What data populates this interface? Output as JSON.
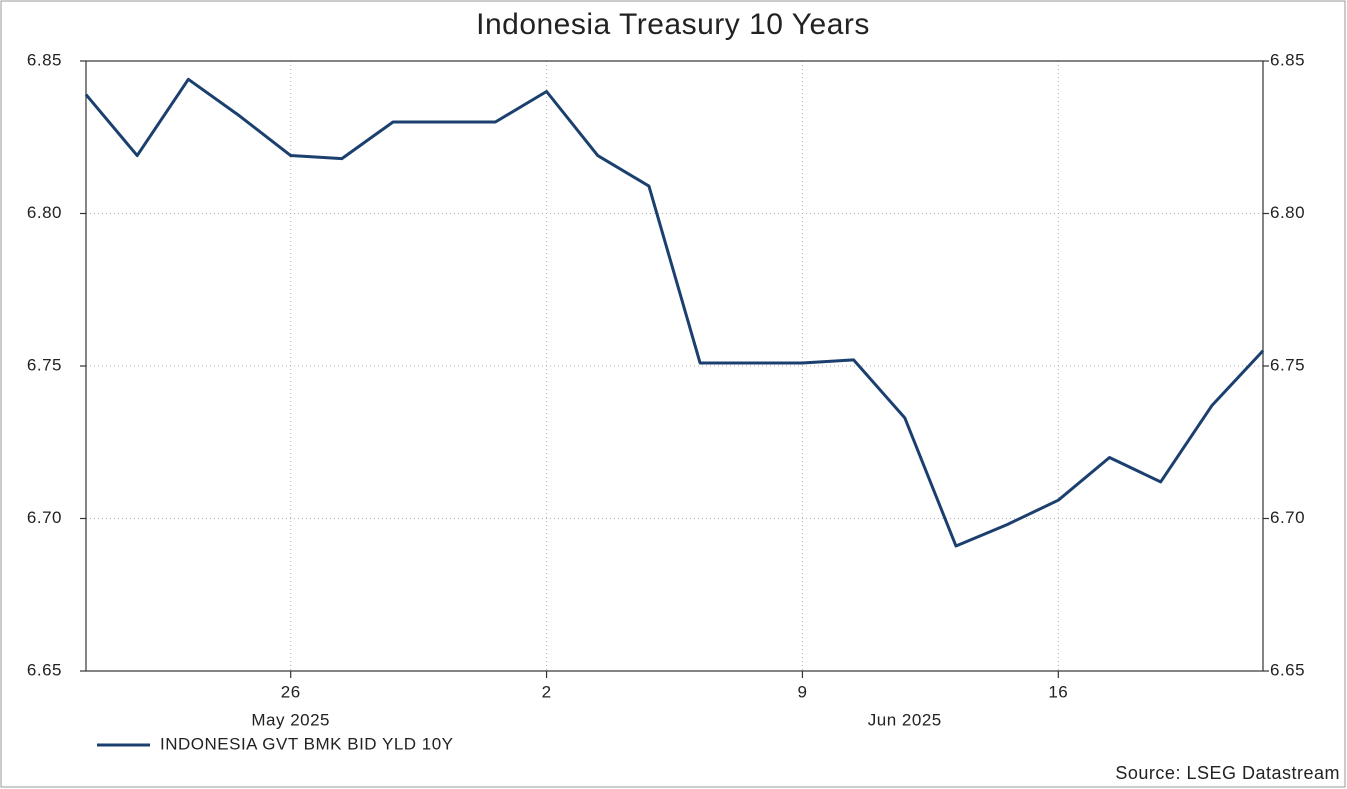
{
  "chart_data": {
    "type": "line",
    "title": "Indonesia Treasury 10 Years",
    "source": "Source: LSEG Datastream",
    "x": [
      "2025-05-20",
      "2025-05-21",
      "2025-05-22",
      "2025-05-23",
      "2025-05-26",
      "2025-05-27",
      "2025-05-28",
      "2025-05-29",
      "2025-05-30",
      "2025-06-02",
      "2025-06-03",
      "2025-06-04",
      "2025-06-05",
      "2025-06-06",
      "2025-06-09",
      "2025-06-10",
      "2025-06-11",
      "2025-06-12",
      "2025-06-13",
      "2025-06-16",
      "2025-06-17",
      "2025-06-18",
      "2025-06-19",
      "2025-06-20"
    ],
    "series": [
      {
        "name": "INDONESIA GVT BMK BID YLD 10Y",
        "color": "#1b3f6e",
        "values": [
          6.839,
          6.819,
          6.844,
          6.832,
          6.819,
          6.818,
          6.83,
          6.83,
          6.83,
          6.84,
          6.819,
          6.809,
          6.751,
          6.751,
          6.751,
          6.752,
          6.733,
          6.691,
          6.698,
          6.706,
          6.72,
          6.712,
          6.737,
          6.755
        ]
      }
    ],
    "xlim": [
      "2025-05-20",
      "2025-06-20"
    ],
    "xticks": [
      {
        "value": "2025-05-26",
        "label": "26"
      },
      {
        "value": "2025-06-02",
        "label": "2"
      },
      {
        "value": "2025-06-09",
        "label": "9"
      },
      {
        "value": "2025-06-16",
        "label": "16"
      }
    ],
    "month_ticks": [
      {
        "value": "2025-05",
        "label": "May 2025"
      },
      {
        "value": "2025-06",
        "label": "Jun 2025"
      }
    ],
    "ylim": [
      6.65,
      6.85
    ],
    "yticks": [
      6.65,
      {
        "value": 6.7,
        "label": "6.70"
      },
      6.75,
      {
        "value": 6.8,
        "label": "6.80"
      },
      6.85
    ],
    "right_axis": true,
    "grid": true,
    "legend": "bottom-left"
  }
}
